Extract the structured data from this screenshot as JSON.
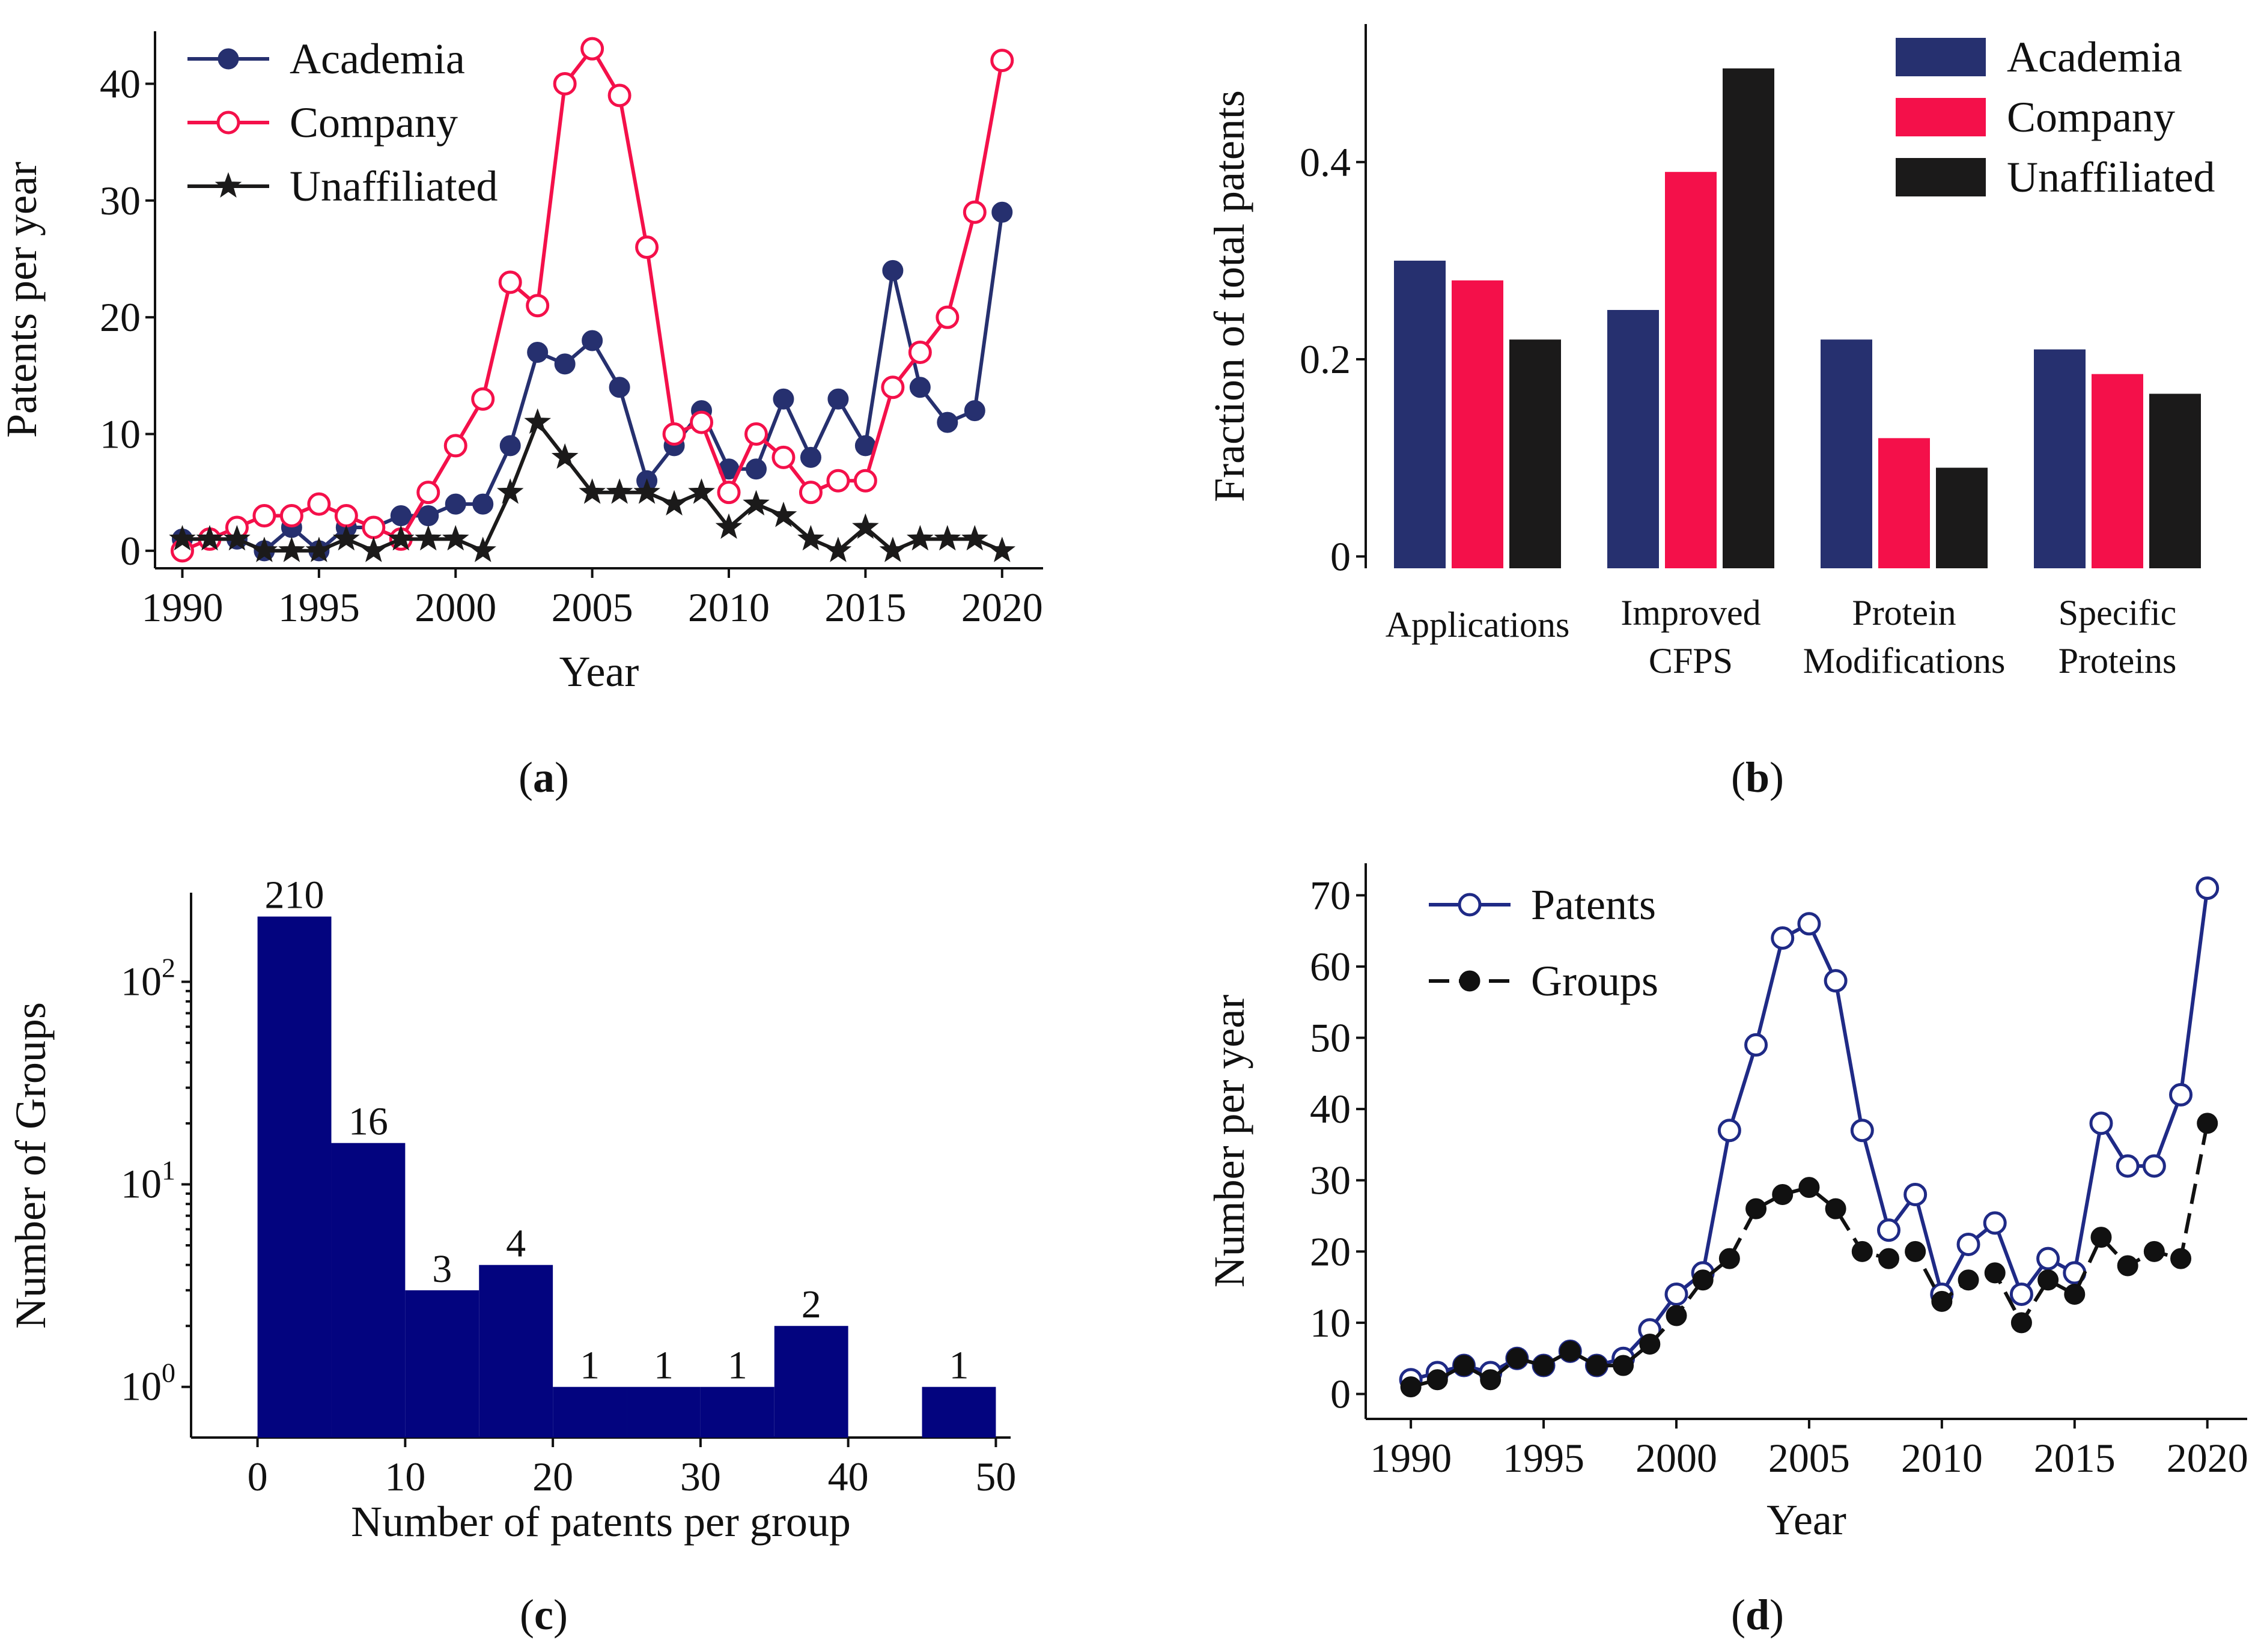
{
  "colors": {
    "academia": "#26306f",
    "company": "#f4104a",
    "unaffiliated": "#1b1a1a",
    "hist": "#03047f",
    "patents": "#1f2a86",
    "groups": "#111111"
  },
  "chart_data": [
    {
      "panel": "a",
      "type": "line",
      "xlabel": "Year",
      "ylabel": "Patents per year",
      "xlim": [
        1989,
        2021.5
      ],
      "ylim": [
        -1.5,
        44.5
      ],
      "xticks": [
        1990,
        1995,
        2000,
        2005,
        2010,
        2015,
        2020
      ],
      "yticks": [
        0,
        10,
        20,
        30,
        40
      ],
      "legend_position": "top-left",
      "x": [
        1990,
        1991,
        1992,
        1993,
        1994,
        1995,
        1996,
        1997,
        1998,
        1999,
        2000,
        2001,
        2002,
        2003,
        2004,
        2005,
        2006,
        2007,
        2008,
        2009,
        2010,
        2011,
        2012,
        2013,
        2014,
        2015,
        2016,
        2017,
        2018,
        2019,
        2020
      ],
      "series": [
        {
          "key": "academia",
          "name": "Academia",
          "marker": "filled-circle",
          "values": [
            1,
            1,
            1,
            0,
            2,
            0,
            2,
            2,
            3,
            3,
            4,
            4,
            9,
            17,
            16,
            18,
            14,
            6,
            9,
            12,
            7,
            7,
            13,
            8,
            13,
            9,
            24,
            14,
            11,
            12,
            29
          ]
        },
        {
          "key": "company",
          "name": "Company",
          "marker": "open-circle",
          "values": [
            0,
            1,
            2,
            3,
            3,
            4,
            3,
            2,
            1,
            5,
            9,
            13,
            23,
            21,
            40,
            43,
            39,
            26,
            10,
            11,
            5,
            10,
            8,
            5,
            6,
            6,
            14,
            17,
            20,
            29,
            42
          ]
        },
        {
          "key": "unaffiliated",
          "name": "Unaffiliated",
          "marker": "star",
          "values": [
            1,
            1,
            1,
            0,
            0,
            0,
            1,
            0,
            1,
            1,
            1,
            0,
            5,
            11,
            8,
            5,
            5,
            5,
            4,
            5,
            2,
            4,
            3,
            1,
            0,
            2,
            0,
            1,
            1,
            1,
            0
          ]
        }
      ]
    },
    {
      "panel": "b",
      "type": "bar",
      "xlabel": "",
      "ylabel": "Fraction of total patents",
      "ylim": [
        -0.012,
        0.54
      ],
      "yticks": [
        0,
        0.2,
        0.4
      ],
      "ytick_labels": [
        "0",
        "0.2",
        "0.4"
      ],
      "legend_position": "top-right",
      "categories": [
        [
          "Applications"
        ],
        [
          "Improved",
          "CFPS"
        ],
        [
          "Protein",
          "Modifications"
        ],
        [
          "Specific",
          "Proteins"
        ]
      ],
      "series": [
        {
          "key": "academia",
          "name": "Academia",
          "values": [
            0.3,
            0.25,
            0.22,
            0.21
          ]
        },
        {
          "key": "company",
          "name": "Company",
          "values": [
            0.28,
            0.39,
            0.12,
            0.185
          ]
        },
        {
          "key": "unaffiliated",
          "name": "Unaffiliated",
          "values": [
            0.22,
            0.495,
            0.09,
            0.165
          ]
        }
      ]
    },
    {
      "panel": "c",
      "type": "bar",
      "subtype": "histogram",
      "xlabel": "Number of patents per group",
      "ylabel": "Number of Groups",
      "yscale": "log",
      "xlim": [
        -4.5,
        51
      ],
      "ylim_log10": [
        -0.25,
        2.44
      ],
      "xticks": [
        0,
        10,
        20,
        30,
        40,
        50
      ],
      "ytick_values": [
        1,
        10,
        100
      ],
      "ytick_base": "10",
      "ytick_exponents": [
        "0",
        "1",
        "2"
      ],
      "bins": [
        {
          "x0": 0,
          "x1": 5,
          "count": 210,
          "label": "210"
        },
        {
          "x0": 5,
          "x1": 10,
          "count": 16,
          "label": "16"
        },
        {
          "x0": 10,
          "x1": 15,
          "count": 3,
          "label": "3"
        },
        {
          "x0": 15,
          "x1": 20,
          "count": 4,
          "label": "4"
        },
        {
          "x0": 20,
          "x1": 25,
          "count": 1,
          "label": "1"
        },
        {
          "x0": 25,
          "x1": 30,
          "count": 1,
          "label": "1"
        },
        {
          "x0": 30,
          "x1": 35,
          "count": 1,
          "label": "1"
        },
        {
          "x0": 35,
          "x1": 40,
          "count": 2,
          "label": "2"
        },
        {
          "x0": 40,
          "x1": 45,
          "count": 0,
          "label": ""
        },
        {
          "x0": 45,
          "x1": 50,
          "count": 1,
          "label": "1"
        }
      ]
    },
    {
      "panel": "d",
      "type": "line",
      "xlabel": "Year",
      "ylabel": "Number per year",
      "xlim": [
        1988.3,
        2021.5
      ],
      "ylim": [
        -3.5,
        74.5
      ],
      "xticks": [
        1990,
        1995,
        2000,
        2005,
        2010,
        2015,
        2020
      ],
      "yticks": [
        0,
        10,
        20,
        30,
        40,
        50,
        60,
        70
      ],
      "legend_position": "top-left",
      "x": [
        1990,
        1991,
        1992,
        1993,
        1994,
        1995,
        1996,
        1997,
        1998,
        1999,
        2000,
        2001,
        2002,
        2003,
        2004,
        2005,
        2006,
        2007,
        2008,
        2009,
        2010,
        2011,
        2012,
        2013,
        2014,
        2015,
        2016,
        2017,
        2018,
        2019,
        2020
      ],
      "series": [
        {
          "key": "patents",
          "name": "Patents",
          "marker": "open-circle",
          "dash": "solid",
          "values": [
            2,
            3,
            4,
            3,
            5,
            4,
            6,
            4,
            5,
            9,
            14,
            17,
            37,
            49,
            64,
            66,
            58,
            37,
            23,
            28,
            14,
            21,
            24,
            14,
            19,
            17,
            38,
            32,
            32,
            42,
            71
          ]
        },
        {
          "key": "groups",
          "name": "Groups",
          "marker": "filled-circle",
          "dash": "dashed",
          "values": [
            1,
            2,
            4,
            2,
            5,
            4,
            6,
            4,
            4,
            7,
            11,
            16,
            19,
            26,
            28,
            29,
            26,
            20,
            19,
            20,
            13,
            16,
            17,
            10,
            16,
            14,
            22,
            18,
            20,
            19,
            38
          ]
        }
      ]
    }
  ],
  "panel_labels": [
    {
      "open": "(",
      "letter": "a",
      "close": ")"
    },
    {
      "open": "(",
      "letter": "b",
      "close": ")"
    },
    {
      "open": "(",
      "letter": "c",
      "close": ")"
    },
    {
      "open": "(",
      "letter": "d",
      "close": ")"
    }
  ]
}
